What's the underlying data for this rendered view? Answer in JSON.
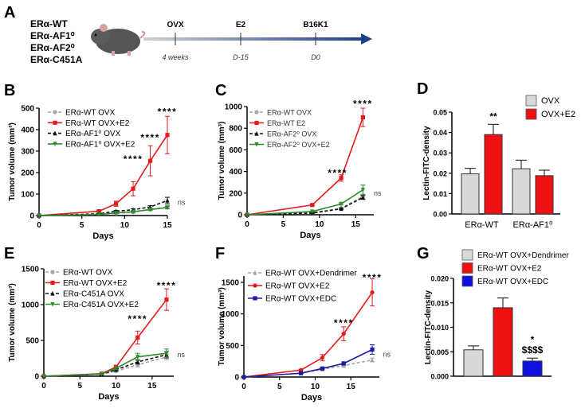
{
  "panel_a": {
    "letter": "A",
    "genotypes": [
      "ERα-WT",
      "ERα-AF1⁰",
      "ERα-AF2⁰",
      "ERα-C451A"
    ],
    "timeline": [
      {
        "event": "OVX",
        "time": "4 weeks"
      },
      {
        "event": "E2",
        "time": "D-15"
      },
      {
        "event": "B16K1",
        "time": "D0"
      }
    ],
    "colors": {
      "arrow_start": "#d0d0d0",
      "arrow_end": "#1f3f8f"
    }
  },
  "chart_data": [
    {
      "id": "B",
      "letter": "B",
      "type": "line",
      "xlabel": "Days",
      "ylabel": "Tumor volume (mm³)",
      "xlim": [
        0,
        15
      ],
      "ylim": [
        0,
        500
      ],
      "xticks": [
        0,
        5,
        10,
        15
      ],
      "yticks": [
        0,
        100,
        200,
        300,
        400,
        500
      ],
      "x": [
        0,
        7,
        9,
        11,
        13,
        15
      ],
      "series": [
        {
          "name": "ERα-WT OVX",
          "color": "#a6a6a6",
          "dash": true,
          "marker": "circle",
          "values": [
            0,
            5,
            10,
            15,
            28,
            40
          ],
          "errors": [
            0,
            1,
            2,
            3,
            5,
            8
          ]
        },
        {
          "name": "ERα-WT OVX+E2",
          "color": "#e41a1c",
          "dash": false,
          "marker": "square",
          "values": [
            0,
            20,
            55,
            125,
            255,
            375
          ],
          "errors": [
            0,
            3,
            12,
            33,
            70,
            87
          ]
        },
        {
          "name": "ERα-AF1⁰ OVX",
          "color": "#111111",
          "dash": true,
          "marker": "triangle",
          "values": [
            0,
            8,
            20,
            27,
            40,
            70
          ],
          "errors": [
            0,
            2,
            4,
            5,
            6,
            15
          ]
        },
        {
          "name": "ERα-AF1⁰ OVX+E2",
          "color": "#2e8b2e",
          "dash": false,
          "marker": "triangle-down",
          "values": [
            0,
            5,
            12,
            18,
            28,
            37
          ],
          "errors": [
            0,
            1,
            2,
            3,
            4,
            6
          ]
        }
      ],
      "annotations": [
        {
          "text": "****",
          "x": 11,
          "y": 270
        },
        {
          "text": "****",
          "x": 13,
          "y": 370
        },
        {
          "text": "****",
          "x": 15,
          "y": 490
        },
        {
          "text": "ns",
          "x": 16.2,
          "y": 62
        }
      ]
    },
    {
      "id": "C",
      "letter": "C",
      "type": "line",
      "xlabel": "Days",
      "ylabel": "Tumor volume (mm³)",
      "xlim": [
        0,
        17.5
      ],
      "ylim": [
        0,
        1000
      ],
      "xticks": [
        0,
        5,
        10,
        15
      ],
      "yticks": [
        0,
        200,
        400,
        600,
        800,
        1000
      ],
      "x": [
        0,
        9,
        13,
        16
      ],
      "series": [
        {
          "name": "ERα-WT OVX",
          "color": "#a6a6a6",
          "dash": true,
          "marker": "circle",
          "values": [
            0,
            20,
            60,
            170
          ],
          "errors": [
            0,
            3,
            8,
            20
          ]
        },
        {
          "name": "ERα-WT E2",
          "color": "#e41a1c",
          "dash": false,
          "marker": "square",
          "values": [
            0,
            90,
            340,
            900
          ],
          "errors": [
            0,
            5,
            30,
            85
          ]
        },
        {
          "name": "ERα-AF2⁰ OVX",
          "color": "#111111",
          "dash": true,
          "marker": "triangle",
          "values": [
            0,
            15,
            55,
            160
          ],
          "errors": [
            0,
            3,
            6,
            18
          ]
        },
        {
          "name": "ERα-AF2⁰ OVX+E2",
          "color": "#2e8b2e",
          "dash": false,
          "marker": "triangle-down",
          "values": [
            0,
            30,
            100,
            230
          ],
          "errors": [
            0,
            4,
            10,
            45
          ]
        }
      ],
      "annotations": [
        {
          "text": "****",
          "x": 12.5,
          "y": 400
        },
        {
          "text": "****",
          "x": 16,
          "y": 1040
        },
        {
          "text": "ns",
          "x": 17.5,
          "y": 200
        }
      ]
    },
    {
      "id": "E",
      "letter": "E",
      "type": "line",
      "xlabel": "Days",
      "ylabel": "Tumor volume (mm³)",
      "xlim": [
        0,
        18
      ],
      "ylim": [
        0,
        1500
      ],
      "xticks": [
        0,
        5,
        10,
        15
      ],
      "yticks": [
        0,
        500,
        1000,
        1500
      ],
      "x": [
        0,
        8,
        10,
        13,
        17
      ],
      "series": [
        {
          "name": "ERα-WT OVX",
          "color": "#a6a6a6",
          "dash": true,
          "marker": "circle",
          "values": [
            0,
            30,
            70,
            160,
            270
          ],
          "errors": [
            0,
            5,
            10,
            30,
            40
          ]
        },
        {
          "name": "ERα-WT OVX+E2",
          "color": "#e41a1c",
          "dash": false,
          "marker": "square",
          "values": [
            0,
            35,
            130,
            540,
            1070
          ],
          "errors": [
            0,
            5,
            20,
            90,
            150
          ]
        },
        {
          "name": "ERα-C451A OVX",
          "color": "#111111",
          "dash": true,
          "marker": "triangle",
          "values": [
            0,
            30,
            90,
            200,
            300
          ],
          "errors": [
            0,
            5,
            12,
            30,
            45
          ]
        },
        {
          "name": "ERα-C451A OVX+E2",
          "color": "#2e8b2e",
          "dash": false,
          "marker": "triangle-down",
          "values": [
            0,
            30,
            110,
            270,
            320
          ],
          "errors": [
            0,
            5,
            15,
            50,
            60
          ]
        }
      ],
      "annotations": [
        {
          "text": "****",
          "x": 13,
          "y": 820
        },
        {
          "text": "****",
          "x": 17,
          "y": 1290
        },
        {
          "text": "ns",
          "x": 18.5,
          "y": 300
        }
      ]
    },
    {
      "id": "F",
      "letter": "F",
      "type": "line",
      "xlabel": "Days",
      "ylabel": "Tumor volume (mm³)",
      "xlim": [
        0,
        19
      ],
      "ylim": [
        0,
        1600
      ],
      "xticks": [
        0,
        5,
        10,
        15
      ],
      "yticks": [
        0,
        500,
        1000,
        1500
      ],
      "x": [
        0,
        8,
        11,
        14,
        18
      ],
      "series": [
        {
          "name": "ERα-WT OVX+Dendrimer",
          "color": "#a6a6a6",
          "dash": true,
          "marker": "triangle",
          "values": [
            0,
            60,
            120,
            180,
            270
          ],
          "errors": [
            0,
            5,
            10,
            15,
            30
          ]
        },
        {
          "name": "ERα-WT OVX+E2",
          "color": "#e41a1c",
          "dash": false,
          "marker": "circle",
          "values": [
            0,
            110,
            305,
            685,
            1340
          ],
          "errors": [
            0,
            10,
            50,
            110,
            215
          ]
        },
        {
          "name": "ERα-WT OVX+EDC",
          "color": "#1a1aa6",
          "dash": false,
          "marker": "square",
          "values": [
            0,
            60,
            135,
            215,
            435
          ],
          "errors": [
            0,
            5,
            20,
            25,
            75
          ]
        }
      ],
      "annotations": [
        {
          "text": "****",
          "x": 14,
          "y": 880
        },
        {
          "text": "****",
          "x": 18,
          "y": 1600
        },
        {
          "text": "ns",
          "x": 19.5,
          "y": 360
        }
      ]
    },
    {
      "id": "D",
      "letter": "D",
      "type": "bar",
      "xlabel": "",
      "ylabel": "Lectin-FITC-density",
      "ylim": [
        0,
        0.05
      ],
      "yticks": [
        "0.00",
        "0.01",
        "0.02",
        "0.03",
        "0.04",
        "0.05"
      ],
      "categories": [
        "ERα-WT",
        "ERα-AF1⁰"
      ],
      "series": [
        {
          "name": "OVX",
          "color": "#d9d9d9",
          "values": [
            0.0197,
            0.0222
          ],
          "errors": [
            0.0027,
            0.0042
          ]
        },
        {
          "name": "OVX+E2",
          "color": "#ee1111",
          "values": [
            0.039,
            0.0188
          ],
          "errors": [
            0.005,
            0.0027
          ]
        }
      ],
      "annotations": [
        {
          "text": "**",
          "category": 0,
          "series": 1
        }
      ]
    },
    {
      "id": "G",
      "letter": "G",
      "type": "bar",
      "xlabel": "",
      "ylabel": "Lectin-FITC-density",
      "ylim": [
        0,
        0.02
      ],
      "yticks": [
        "0.000",
        "0.005",
        "0.010",
        "0.015",
        "0.020"
      ],
      "categories": [
        ""
      ],
      "series": [
        {
          "name": "ERα-WT OVX+Dendrimer",
          "color": "#d9d9d9",
          "values": [
            0.0054
          ],
          "errors": [
            0.0008
          ]
        },
        {
          "name": "ERα-WT OVX+E2",
          "color": "#ee1111",
          "values": [
            0.014
          ],
          "errors": [
            0.002
          ]
        },
        {
          "name": "ERα-WT OVX+EDC",
          "color": "#1010e0",
          "values": [
            0.0031
          ],
          "errors": [
            0.0006
          ]
        }
      ],
      "annotations": [
        {
          "text": "*",
          "series": 2,
          "line": 0
        },
        {
          "text": "$$$$",
          "series": 2,
          "line": 1
        }
      ]
    }
  ]
}
